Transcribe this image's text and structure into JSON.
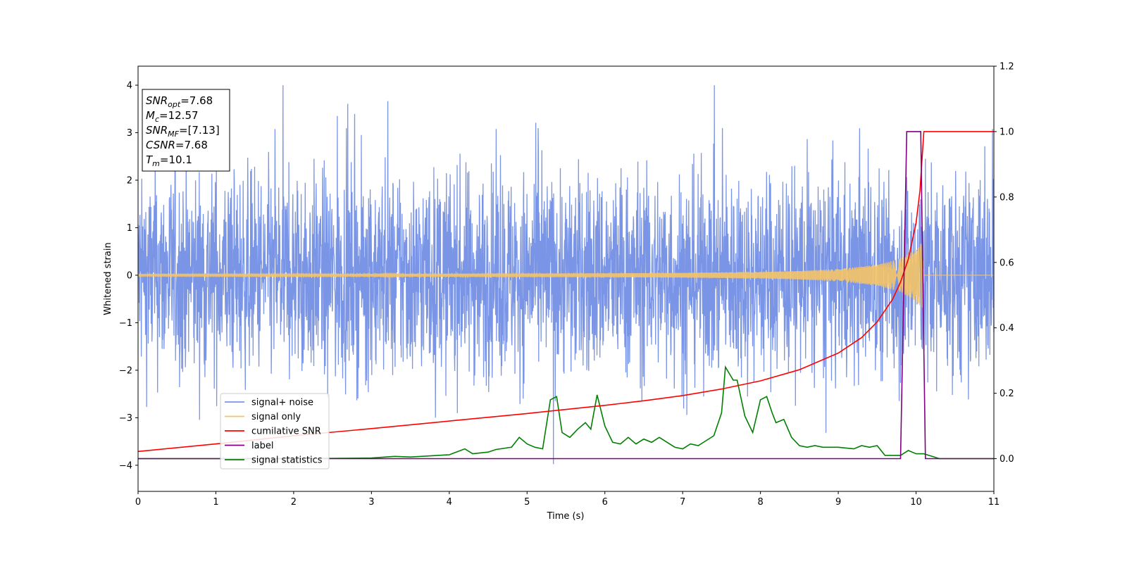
{
  "chart_data": {
    "type": "line",
    "title": "",
    "xlabel": "Time (s)",
    "ylabel": "Whitened strain",
    "y2label": "",
    "xlim": [
      0,
      11
    ],
    "ylim": [
      -4.55,
      4.4
    ],
    "y2lim": [
      -0.1,
      1.2
    ],
    "xticks": [
      "0",
      "1",
      "2",
      "3",
      "4",
      "5",
      "6",
      "7",
      "8",
      "9",
      "10",
      "11"
    ],
    "yticks": [
      "−4",
      "−3",
      "−2",
      "−1",
      "0",
      "1",
      "2",
      "3",
      "4"
    ],
    "y2ticks": [
      "0.0",
      "0.2",
      "0.4",
      "0.6",
      "0.8",
      "1.0",
      "1.2"
    ],
    "grid": false,
    "legend_position": "lower-left",
    "annotation_box": {
      "lines": [
        {
          "sym": "SNR",
          "sub": "opt",
          "val": "=7.68"
        },
        {
          "sym": "M",
          "sub": "c",
          "val": "=12.57"
        },
        {
          "sym": "SNR",
          "sub": "MF",
          "val": "=[7.13]"
        },
        {
          "sym": "CSNR",
          "sub": "",
          "val": "=7.68"
        },
        {
          "sym": "T",
          "sub": "m",
          "val": "=10.1"
        }
      ]
    },
    "series": [
      {
        "name": "signal+ noise",
        "color": "#7b95e6",
        "axis": "left",
        "description_values": {
          "envelope_min": -4.15,
          "envelope_max": 4.0,
          "typical_abs": 1.4
        }
      },
      {
        "name": "signal only",
        "color": "#f5c466",
        "axis": "left",
        "envelope": {
          "x": [
            0,
            2,
            4,
            6,
            7,
            8,
            8.5,
            9,
            9.5,
            9.8,
            10.0,
            10.08,
            10.1,
            11
          ],
          "amp": [
            0.02,
            0.025,
            0.03,
            0.04,
            0.05,
            0.07,
            0.09,
            0.13,
            0.22,
            0.35,
            0.55,
            0.7,
            0.0,
            0.0
          ]
        }
      },
      {
        "name": "cumilative SNR",
        "color": "#ff0000",
        "axis": "right",
        "x": [
          0,
          1,
          2,
          3,
          4,
          5,
          6,
          6.5,
          7,
          7.5,
          8,
          8.5,
          9,
          9.3,
          9.5,
          9.7,
          9.8,
          9.9,
          10.0,
          10.05,
          10.1,
          11
        ],
        "y": [
          0.022,
          0.045,
          0.07,
          0.092,
          0.115,
          0.138,
          0.163,
          0.177,
          0.193,
          0.213,
          0.238,
          0.272,
          0.323,
          0.37,
          0.418,
          0.488,
          0.54,
          0.61,
          0.72,
          0.82,
          1.0,
          1.0
        ]
      },
      {
        "name": "label",
        "color": "#800080",
        "axis": "right",
        "x": [
          0,
          9.8,
          9.88,
          10.06,
          10.12,
          11
        ],
        "y": [
          0,
          0,
          1,
          1,
          0,
          0
        ]
      },
      {
        "name": "signal statistics",
        "color": "#008000",
        "axis": "right",
        "x": [
          0,
          1,
          2,
          3,
          3.3,
          3.5,
          4,
          4.2,
          4.3,
          4.5,
          4.6,
          4.8,
          4.9,
          5.0,
          5.1,
          5.2,
          5.3,
          5.38,
          5.45,
          5.55,
          5.65,
          5.75,
          5.82,
          5.9,
          6.0,
          6.1,
          6.2,
          6.3,
          6.4,
          6.5,
          6.6,
          6.7,
          6.8,
          6.9,
          7.0,
          7.1,
          7.2,
          7.3,
          7.4,
          7.5,
          7.55,
          7.65,
          7.7,
          7.8,
          7.9,
          8.0,
          8.08,
          8.15,
          8.2,
          8.3,
          8.4,
          8.5,
          8.6,
          8.7,
          8.8,
          9.0,
          9.2,
          9.3,
          9.4,
          9.5,
          9.6,
          9.8,
          9.9,
          10.0,
          10.1,
          10.3,
          11
        ],
        "y": [
          0.0,
          0.0,
          0.0,
          0.002,
          0.007,
          0.005,
          0.012,
          0.03,
          0.015,
          0.02,
          0.028,
          0.035,
          0.065,
          0.045,
          0.035,
          0.03,
          0.18,
          0.19,
          0.08,
          0.065,
          0.09,
          0.11,
          0.09,
          0.195,
          0.1,
          0.05,
          0.045,
          0.065,
          0.045,
          0.06,
          0.05,
          0.065,
          0.05,
          0.035,
          0.03,
          0.045,
          0.04,
          0.055,
          0.07,
          0.14,
          0.28,
          0.24,
          0.24,
          0.13,
          0.08,
          0.18,
          0.19,
          0.14,
          0.11,
          0.12,
          0.065,
          0.04,
          0.035,
          0.04,
          0.035,
          0.035,
          0.03,
          0.04,
          0.035,
          0.04,
          0.01,
          0.01,
          0.025,
          0.015,
          0.015,
          0.0,
          0.0
        ]
      }
    ]
  }
}
